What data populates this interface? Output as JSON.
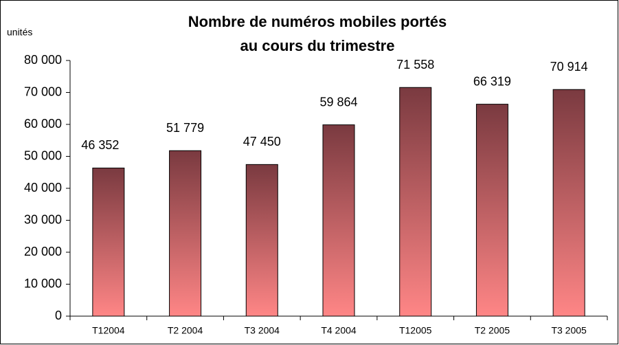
{
  "chart_data": {
    "type": "bar",
    "title": [
      "Nombre de numéros mobiles portés",
      "au cours du trimestre"
    ],
    "y_label": "unités",
    "categories": [
      "T12004",
      "T2 2004",
      "T3 2004",
      "T4 2004",
      "T12005",
      "T2 2005",
      "T3 2005"
    ],
    "values": [
      46352,
      51779,
      47450,
      59864,
      71558,
      66319,
      70914
    ],
    "value_labels": [
      "46 352",
      "51 779",
      "47 450",
      "59 864",
      "71 558",
      "66 319",
      "70 914"
    ],
    "gradient": {
      "top": "#7a3a40",
      "bottom": "#ff8686"
    },
    "title_color": "#8b1c24",
    "ylim": [
      0,
      80000
    ],
    "yticks": [
      0,
      {
        "value": 10000,
        "label": "10 000"
      },
      {
        "value": 20000,
        "label": "20 000"
      },
      {
        "value": 30000,
        "label": "30 000"
      },
      {
        "value": 40000,
        "label": "40 000"
      },
      {
        "value": 50000,
        "label": "50 000"
      },
      {
        "value": 60000,
        "label": "60 000"
      },
      {
        "value": 70000,
        "label": "70 000"
      },
      {
        "value": 80000,
        "label": "80 000"
      }
    ]
  }
}
